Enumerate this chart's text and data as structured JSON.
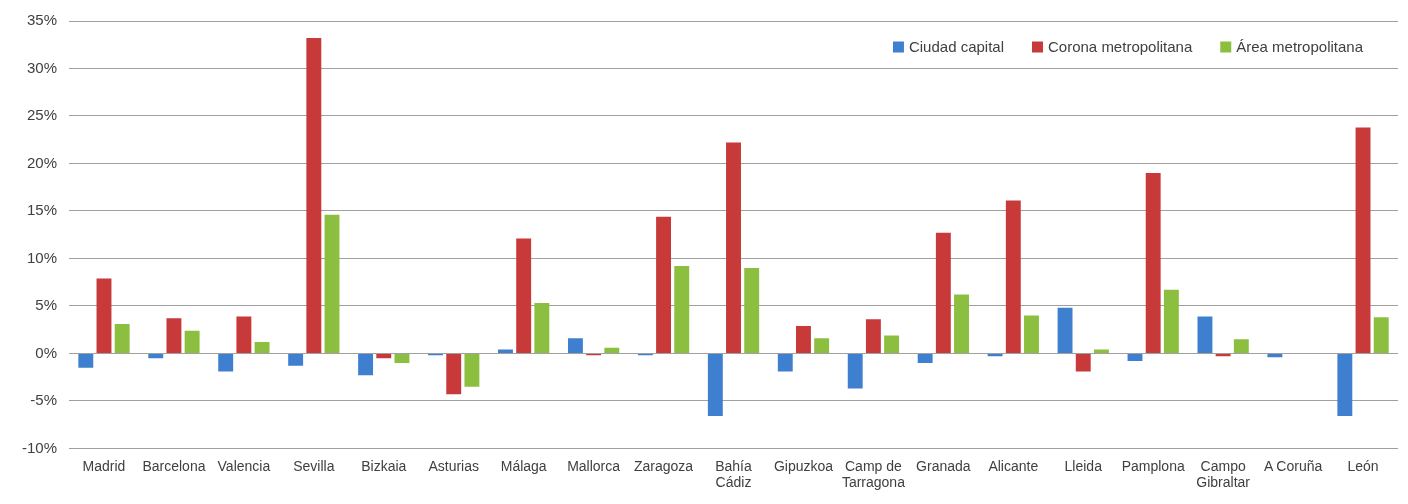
{
  "chart_data": {
    "type": "bar",
    "categories": [
      "Madrid",
      "Barcelona",
      "Valencia",
      "Sevilla",
      "Bizkaia",
      "Asturias",
      "Málaga",
      "Mallorca",
      "Zaragoza",
      "Bahía Cádiz",
      "Gipuzkoa",
      "Camp de Tarragona",
      "Granada",
      "Alicante",
      "Lleida",
      "Pamplona",
      "Campo Gibraltar",
      "A Coruña",
      "León"
    ],
    "series": [
      {
        "name": "Ciudad capital",
        "color": "#3f7fcf",
        "values": [
          -1.5,
          -0.5,
          -1.9,
          -1.3,
          -2.3,
          -0.2,
          0.4,
          1.6,
          -0.2,
          -6.6,
          -1.9,
          -3.7,
          -1.0,
          -0.3,
          4.8,
          -0.8,
          3.9,
          -0.4,
          -6.6
        ]
      },
      {
        "name": "Corona metropolitana",
        "color": "#c8393a",
        "values": [
          7.9,
          3.7,
          3.9,
          33.2,
          -0.5,
          -4.3,
          12.1,
          -0.2,
          14.4,
          22.2,
          2.9,
          3.6,
          12.7,
          16.1,
          -1.9,
          19.0,
          -0.3,
          null,
          23.8
        ]
      },
      {
        "name": "Área metropolitana",
        "color": "#8cbf3f",
        "values": [
          3.1,
          2.4,
          1.2,
          14.6,
          -1.0,
          -3.5,
          5.3,
          0.6,
          9.2,
          9.0,
          1.6,
          1.9,
          6.2,
          4.0,
          0.4,
          6.7,
          1.5,
          null,
          3.8
        ]
      }
    ],
    "ylim": [
      -10,
      35
    ],
    "yticks": [
      {
        "value": -10,
        "label": "-10%"
      },
      {
        "value": -5,
        "label": "-5%"
      },
      {
        "value": 0,
        "label": "0%"
      },
      {
        "value": 5,
        "label": "5%"
      },
      {
        "value": 10,
        "label": "10%"
      },
      {
        "value": 15,
        "label": "15%"
      },
      {
        "value": 20,
        "label": "20%"
      },
      {
        "value": 25,
        "label": "25%"
      },
      {
        "value": 30,
        "label": "30%"
      },
      {
        "value": 35,
        "label": "35%"
      }
    ],
    "grid": "y",
    "legend": "top right"
  }
}
